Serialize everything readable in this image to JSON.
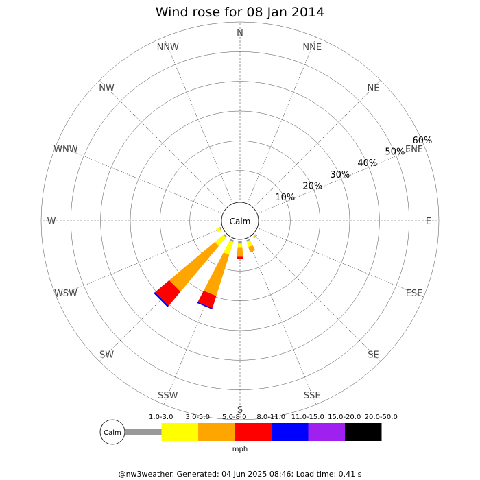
{
  "title": "Wind rose for 08 Jan 2014",
  "footer": "@nw3weather. Generated: 04 Jun 2025 08:46; Load time: 0.41 s",
  "calm_label": "Calm",
  "unit_label": "mph",
  "chart_data": {
    "type": "windrose",
    "title": "Wind rose for 08 Jan 2014",
    "directions": [
      "N",
      "NNE",
      "NE",
      "ENE",
      "E",
      "ESE",
      "SE",
      "SSE",
      "S",
      "SSW",
      "SW",
      "WSW",
      "W",
      "WNW",
      "NW",
      "NNW"
    ],
    "radial_ticks": [
      "10%",
      "20%",
      "30%",
      "40%",
      "50%",
      "60%"
    ],
    "radial_max_percent": 60,
    "speed_bins": [
      {
        "label": "1.0-3.0",
        "color": "#999999"
      },
      {
        "label": "3.0-5.0",
        "color": "#ffff00"
      },
      {
        "label": "5.0-8.0",
        "color": "#ffa500"
      },
      {
        "label": "8.0-11.0",
        "color": "#ff0000"
      },
      {
        "label": "11.0-15.0",
        "color": "#0000ff"
      },
      {
        "label": "15.0-20.0",
        "color": "#a020f0"
      },
      {
        "label": "20.0-50.0",
        "color": "#000000"
      }
    ],
    "calm_percent": 0,
    "series": [
      {
        "name": "1.0-3.0",
        "values": [
          0,
          0,
          0,
          0,
          0,
          0,
          0.1,
          0.4,
          0.8,
          0.6,
          0.4,
          0.3,
          0,
          0,
          0,
          0
        ]
      },
      {
        "name": "3.0-5.0",
        "values": [
          0,
          0,
          0,
          0,
          0,
          0,
          0.2,
          2.0,
          1.2,
          4.5,
          3.8,
          1.2,
          0,
          0,
          0,
          0
        ]
      },
      {
        "name": "5.0-8.0",
        "values": [
          0,
          0,
          0,
          0,
          0,
          0,
          0.4,
          1.8,
          3.2,
          14.5,
          20.0,
          0,
          0,
          0,
          0,
          0
        ]
      },
      {
        "name": "8.0-11.0",
        "values": [
          0,
          0,
          0,
          0,
          0,
          0,
          0,
          0,
          0.8,
          4.3,
          6.2,
          0,
          0,
          0,
          0,
          0
        ]
      },
      {
        "name": "11.0-15.0",
        "values": [
          0,
          0,
          0,
          0,
          0,
          0,
          0,
          0,
          0,
          0.4,
          0.6,
          0,
          0,
          0,
          0,
          0
        ]
      },
      {
        "name": "15.0-20.0",
        "values": [
          0,
          0,
          0,
          0,
          0,
          0,
          0,
          0,
          0,
          0,
          0,
          0,
          0,
          0,
          0,
          0
        ]
      },
      {
        "name": "20.0-50.0",
        "values": [
          0,
          0,
          0,
          0,
          0,
          0,
          0,
          0,
          0,
          0,
          0,
          0,
          0,
          0,
          0,
          0
        ]
      }
    ],
    "grid": true,
    "legend_position": "bottom"
  }
}
